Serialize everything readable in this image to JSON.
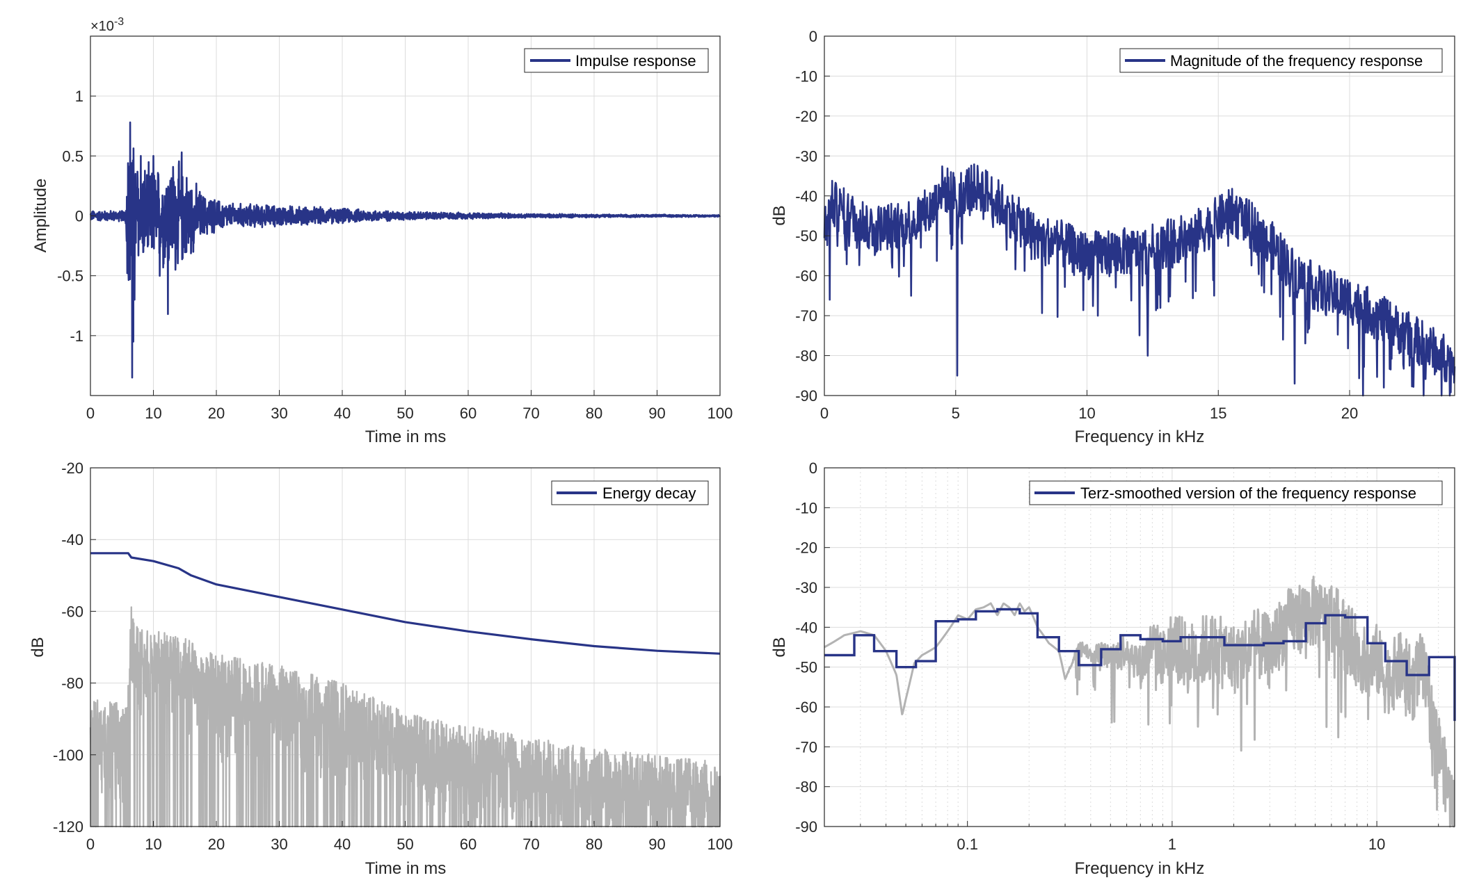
{
  "colors": {
    "series_main": "#283487",
    "series_background": "#b3b3b3",
    "grid": "#dcdcdc",
    "axis": "#262626"
  },
  "chart_data": [
    {
      "type": "line",
      "xlabel": "Time in ms",
      "ylabel": "Amplitude",
      "xlim": [
        0,
        100
      ],
      "ylim": [
        -1.5,
        1.5
      ],
      "exponent_label": "×10",
      "exponent_power": "-3",
      "xticks": [
        "0",
        "10",
        "20",
        "30",
        "40",
        "50",
        "60",
        "70",
        "80",
        "90",
        "100"
      ],
      "yticks": [
        "1",
        "0.5",
        "0",
        "-0.5",
        "-1"
      ],
      "ytick_values": [
        1,
        0.5,
        0,
        -0.5,
        -1
      ],
      "grid": true,
      "legend_placement": "top-right",
      "series": [
        {
          "name": "Impulse response",
          "color": "#283487",
          "envelope_t": [
            0,
            5.5,
            6.2,
            6.8,
            8,
            10,
            12,
            13,
            15,
            18,
            22,
            30,
            40,
            50,
            60,
            70,
            80,
            90,
            100
          ],
          "envelope_a": [
            0.05,
            0.05,
            1.3,
            0.7,
            0.5,
            0.45,
            0.5,
            0.55,
            0.45,
            0.2,
            0.12,
            0.1,
            0.07,
            0.04,
            0.03,
            0.02,
            0.015,
            0.012,
            0.01
          ],
          "peaks": [
            [
              6.3,
              0.78
            ],
            [
              6.6,
              -1.35
            ],
            [
              6.8,
              -1.05
            ],
            [
              7,
              -0.7
            ],
            [
              8,
              0.5
            ],
            [
              10,
              0.5
            ],
            [
              11,
              -0.5
            ],
            [
              12.3,
              -0.82
            ],
            [
              13.5,
              0.53
            ],
            [
              14.5,
              0.53
            ],
            [
              13.5,
              -0.45
            ],
            [
              16,
              -0.3
            ]
          ]
        }
      ]
    },
    {
      "type": "line",
      "xlabel": "Frequency in kHz",
      "ylabel": "dB",
      "xlim": [
        0,
        24
      ],
      "ylim": [
        -90,
        0
      ],
      "xticks": [
        "0",
        "5",
        "10",
        "15",
        "20"
      ],
      "xtick_values": [
        0,
        5,
        10,
        15,
        20
      ],
      "yticks": [
        "0",
        "-10",
        "-20",
        "-30",
        "-40",
        "-50",
        "-60",
        "-70",
        "-80",
        "-90"
      ],
      "grid": true,
      "legend_placement": "top-right",
      "series": [
        {
          "name": "Magnitude of the frequency response",
          "color": "#283487",
          "envelope_f": [
            0,
            0.3,
            1,
            2,
            3,
            4,
            4.5,
            5,
            5.5,
            6,
            7,
            8,
            9,
            10,
            11,
            12,
            13,
            14,
            15,
            15.5,
            16,
            17,
            18,
            19,
            20,
            21,
            22,
            23,
            24
          ],
          "envelope_db": [
            -48,
            -42,
            -45,
            -48,
            -47,
            -44,
            -38,
            -40,
            -38,
            -38,
            -44,
            -50,
            -52,
            -55,
            -54,
            -54,
            -52,
            -50,
            -46,
            -44,
            -46,
            -52,
            -60,
            -64,
            -66,
            -70,
            -74,
            -78,
            -82
          ],
          "dips": [
            [
              5.05,
              -85
            ],
            [
              0.2,
              -66
            ],
            [
              3.3,
              -65
            ],
            [
              10.4,
              -70
            ],
            [
              12.3,
              -80
            ],
            [
              17.9,
              -87
            ],
            [
              20.5,
              -90
            ],
            [
              21.3,
              -88
            ],
            [
              23.5,
              -90
            ]
          ]
        }
      ]
    },
    {
      "type": "line",
      "xlabel": "Time in ms",
      "ylabel": "dB",
      "xlim": [
        0,
        100
      ],
      "ylim": [
        -120,
        -20
      ],
      "xticks": [
        "0",
        "10",
        "20",
        "30",
        "40",
        "50",
        "60",
        "70",
        "80",
        "90",
        "100"
      ],
      "yticks": [
        "-20",
        "-40",
        "-60",
        "-80",
        "-100",
        "-120"
      ],
      "ytick_values": [
        -20,
        -40,
        -60,
        -80,
        -100,
        -120
      ],
      "grid": true,
      "legend_placement": "top-right",
      "series": [
        {
          "name": "Energy decay",
          "color": "#283487",
          "x": [
            0,
            6,
            6.5,
            10,
            14,
            16,
            20,
            30,
            40,
            50,
            60,
            70,
            80,
            90,
            100
          ],
          "y": [
            -43.8,
            -43.8,
            -45,
            -46,
            -48,
            -50,
            -52.5,
            -56,
            -59.5,
            -63,
            -65.6,
            -67.8,
            -69.7,
            -71,
            -71.8
          ]
        },
        {
          "color": "#b3b3b3",
          "envelope_t": [
            0,
            5.8,
            6.5,
            8,
            12,
            16,
            20,
            30,
            40,
            50,
            60,
            70,
            80,
            90,
            100
          ],
          "envelope_top": [
            -84,
            -86,
            -57,
            -65,
            -66,
            -68,
            -72,
            -75,
            -80,
            -88,
            -92,
            -95,
            -98,
            -100,
            -102
          ],
          "envelope_bottom": [
            -120,
            -120,
            -120,
            -120,
            -120,
            -120,
            -120,
            -120,
            -120,
            -120,
            -120,
            -120,
            -120,
            -120,
            -120
          ]
        }
      ]
    },
    {
      "type": "line",
      "xlabel": "Frequency in kHz",
      "ylabel": "dB",
      "xscale": "log",
      "xlim": [
        0.02,
        24
      ],
      "ylim": [
        -90,
        0
      ],
      "xticks": [
        "0.1",
        "1",
        "10"
      ],
      "xtick_values": [
        0.1,
        1,
        10
      ],
      "yticks": [
        "0",
        "-10",
        "-20",
        "-30",
        "-40",
        "-50",
        "-60",
        "-70",
        "-80",
        "-90"
      ],
      "grid": true,
      "legend_placement": "top-right",
      "series": [
        {
          "name": "Terz-smoothed version of the frequency response",
          "color": "#283487",
          "band_edges_khz": [
            0.02,
            0.028,
            0.035,
            0.045,
            0.056,
            0.07,
            0.09,
            0.11,
            0.14,
            0.18,
            0.22,
            0.28,
            0.35,
            0.45,
            0.56,
            0.7,
            0.9,
            1.1,
            1.4,
            1.8,
            2.2,
            2.8,
            3.5,
            4.5,
            5.6,
            7,
            9,
            11,
            14,
            18,
            24
          ],
          "band_db": [
            -47,
            -42,
            -46,
            -50,
            -48.5,
            -38.5,
            -38,
            -36,
            -35.5,
            -36.5,
            -42.5,
            -46,
            -49.5,
            -45.5,
            -42,
            -43,
            -43.5,
            -42.5,
            -42.5,
            -44.5,
            -44.5,
            -44,
            -43.5,
            -39,
            -37,
            -37.5,
            -44,
            -48.5,
            -52,
            -47.5,
            -63.5
          ]
        },
        {
          "color": "#b3b3b3",
          "x": [
            0.02,
            0.025,
            0.03,
            0.035,
            0.04,
            0.045,
            0.048,
            0.05,
            0.055,
            0.06,
            0.07,
            0.08,
            0.09,
            0.1,
            0.11,
            0.12,
            0.13,
            0.14,
            0.15,
            0.16,
            0.17,
            0.18,
            0.19,
            0.2,
            0.22,
            0.25,
            0.28,
            0.3,
            0.33,
            0.35,
            0.4,
            0.45,
            0.5,
            0.6,
            0.7,
            0.8,
            0.9,
            1,
            1.2,
            1.5,
            2,
            2.5,
            3,
            3.5,
            4,
            4.5,
            5,
            5.5,
            6,
            7,
            8,
            9,
            10,
            11,
            12,
            13,
            14,
            15,
            16,
            17,
            18,
            19,
            20,
            21,
            22,
            24
          ],
          "y": [
            -45,
            -42,
            -41,
            -42,
            -46,
            -52,
            -62,
            -58,
            -49,
            -47,
            -45,
            -41,
            -37,
            -38,
            -35.5,
            -35,
            -34,
            -37,
            -34,
            -35,
            -37,
            -34,
            -36,
            -35,
            -40,
            -44,
            -46,
            -53,
            -48,
            -44,
            -47,
            -46,
            -48,
            -45,
            -50,
            -44,
            -48,
            -43,
            -48,
            -45,
            -48,
            -44,
            -46,
            -40,
            -38,
            -37,
            -36,
            -38,
            -37,
            -42,
            -46,
            -50,
            -48,
            -53,
            -52,
            -50,
            -52,
            -55,
            -50,
            -52,
            -60,
            -64,
            -70,
            -74,
            -80,
            -86
          ],
          "noise_from_khz": 0.3,
          "noise_amp_db": 9
        }
      ]
    }
  ]
}
